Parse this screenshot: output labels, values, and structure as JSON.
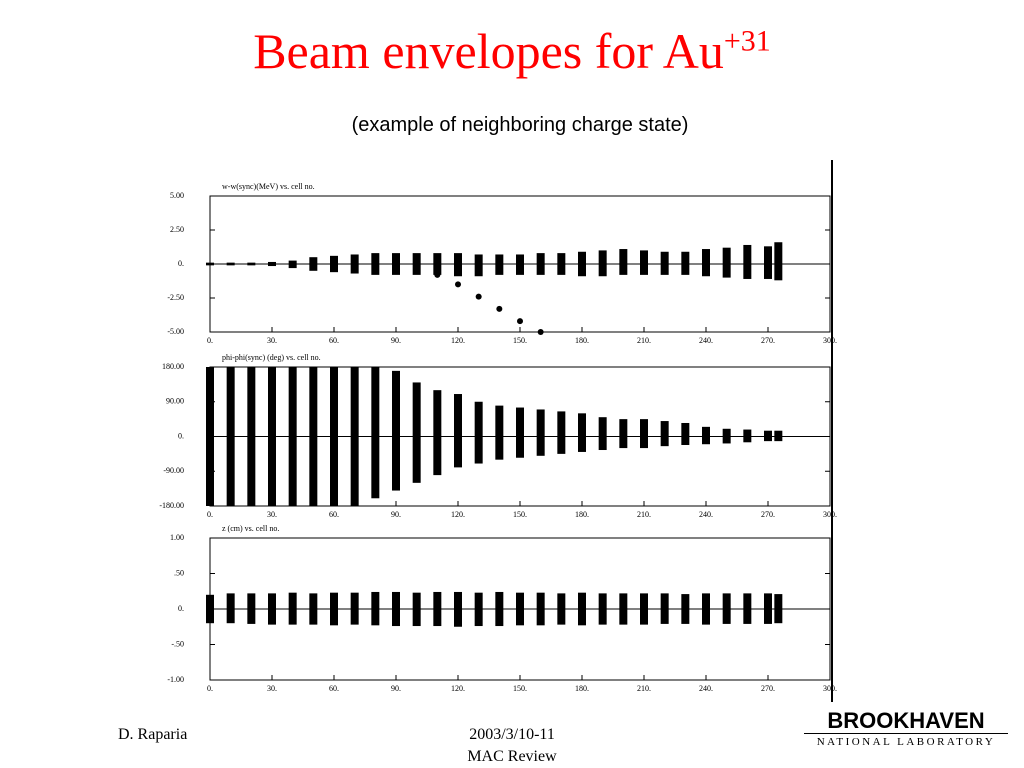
{
  "slide": {
    "title": "Beam envelopes for Au",
    "title_sup": "+31",
    "subtitle": "(example of neighboring charge state)",
    "author": "D. Raparia",
    "date": "2003/3/10-11",
    "event": "MAC Review",
    "logo_top": "BROOKHAVEN",
    "logo_bottom": "NATIONAL LABORATORY"
  },
  "chart_data": [
    {
      "type": "band",
      "title": "w-w(sync)(MeV) vs. cell no.",
      "color": "#000000",
      "x": [
        0,
        10,
        20,
        30,
        40,
        50,
        60,
        70,
        80,
        90,
        100,
        110,
        120,
        130,
        140,
        150,
        160,
        170,
        180,
        190,
        200,
        210,
        220,
        230,
        240,
        250,
        260,
        270,
        275
      ],
      "upper": [
        0.1,
        0.1,
        0.1,
        0.15,
        0.25,
        0.5,
        0.6,
        0.7,
        0.8,
        0.8,
        0.8,
        0.8,
        0.8,
        0.7,
        0.7,
        0.7,
        0.8,
        0.8,
        0.9,
        1.0,
        1.1,
        1.0,
        0.9,
        0.9,
        1.1,
        1.2,
        1.4,
        1.3,
        1.6
      ],
      "lower": [
        -0.1,
        -0.1,
        -0.1,
        -0.15,
        -0.3,
        -0.5,
        -0.6,
        -0.7,
        -0.8,
        -0.8,
        -0.8,
        -0.8,
        -0.9,
        -0.9,
        -0.8,
        -0.8,
        -0.8,
        -0.8,
        -0.9,
        -0.9,
        -0.8,
        -0.8,
        -0.8,
        -0.8,
        -0.9,
        -1.0,
        -1.1,
        -1.1,
        -1.2
      ],
      "branch": {
        "x": [
          100,
          110,
          120,
          130,
          140,
          150,
          160
        ],
        "values": [
          -0.3,
          -0.8,
          -1.5,
          -2.4,
          -3.3,
          -4.2,
          -5.0
        ]
      },
      "xlim": [
        0,
        300
      ],
      "ylim": [
        -5,
        5
      ],
      "xticks": [
        {
          "value": 0,
          "label": "0."
        },
        {
          "value": 30,
          "label": "30."
        },
        {
          "value": 60,
          "label": "60."
        },
        {
          "value": 90,
          "label": "90."
        },
        {
          "value": 120,
          "label": "120."
        },
        {
          "value": 150,
          "label": "150."
        },
        {
          "value": 180,
          "label": "180."
        },
        {
          "value": 210,
          "label": "210."
        },
        {
          "value": 240,
          "label": "240."
        },
        {
          "value": 270,
          "label": "270."
        },
        {
          "value": 300,
          "label": "300."
        }
      ],
      "yticks": [
        {
          "value": 5,
          "label": "5.00"
        },
        {
          "value": 2.5,
          "label": "2.50"
        },
        {
          "value": 0,
          "label": "0."
        },
        {
          "value": -2.5,
          "label": "-2.50"
        },
        {
          "value": -5,
          "label": "-5.00"
        }
      ]
    },
    {
      "type": "band",
      "title": "phi-phi(sync) (deg) vs. cell no.",
      "color": "#000000",
      "x": [
        0,
        10,
        20,
        30,
        40,
        50,
        60,
        70,
        80,
        90,
        100,
        110,
        120,
        130,
        140,
        150,
        160,
        170,
        180,
        190,
        200,
        210,
        220,
        230,
        240,
        250,
        260,
        270,
        275
      ],
      "upper": [
        180,
        180,
        180,
        180,
        180,
        180,
        180,
        180,
        180,
        170,
        140,
        120,
        110,
        90,
        80,
        75,
        70,
        65,
        60,
        50,
        45,
        45,
        40,
        35,
        25,
        20,
        18,
        15,
        15
      ],
      "lower": [
        -180,
        -180,
        -180,
        -180,
        -180,
        -180,
        -180,
        -180,
        -160,
        -140,
        -120,
        -100,
        -80,
        -70,
        -60,
        -55,
        -50,
        -45,
        -40,
        -35,
        -30,
        -30,
        -25,
        -22,
        -20,
        -18,
        -15,
        -12,
        -12
      ],
      "xlim": [
        0,
        300
      ],
      "ylim": [
        -180,
        180
      ],
      "xticks": [
        {
          "value": 0,
          "label": "0."
        },
        {
          "value": 30,
          "label": "30."
        },
        {
          "value": 60,
          "label": "60."
        },
        {
          "value": 90,
          "label": "90."
        },
        {
          "value": 120,
          "label": "120."
        },
        {
          "value": 150,
          "label": "150."
        },
        {
          "value": 180,
          "label": "180."
        },
        {
          "value": 210,
          "label": "210."
        },
        {
          "value": 240,
          "label": "240."
        },
        {
          "value": 270,
          "label": "270."
        },
        {
          "value": 300,
          "label": "300."
        }
      ],
      "yticks": [
        {
          "value": 180,
          "label": "180.00"
        },
        {
          "value": 90,
          "label": "90.00"
        },
        {
          "value": 0,
          "label": "0."
        },
        {
          "value": -90,
          "label": "-90.00"
        },
        {
          "value": -180,
          "label": "-180.00"
        }
      ]
    },
    {
      "type": "band",
      "title": "z (cm) vs. cell no.",
      "color": "#000000",
      "x": [
        0,
        10,
        20,
        30,
        40,
        50,
        60,
        70,
        80,
        90,
        100,
        110,
        120,
        130,
        140,
        150,
        160,
        170,
        180,
        190,
        200,
        210,
        220,
        230,
        240,
        250,
        260,
        270,
        275
      ],
      "upper": [
        0.2,
        0.22,
        0.22,
        0.22,
        0.23,
        0.22,
        0.23,
        0.23,
        0.24,
        0.24,
        0.23,
        0.24,
        0.24,
        0.23,
        0.24,
        0.23,
        0.23,
        0.22,
        0.23,
        0.22,
        0.22,
        0.22,
        0.22,
        0.21,
        0.22,
        0.22,
        0.22,
        0.22,
        0.21
      ],
      "lower": [
        -0.2,
        -0.2,
        -0.21,
        -0.22,
        -0.22,
        -0.22,
        -0.23,
        -0.22,
        -0.23,
        -0.24,
        -0.24,
        -0.24,
        -0.25,
        -0.24,
        -0.24,
        -0.23,
        -0.23,
        -0.22,
        -0.23,
        -0.22,
        -0.22,
        -0.22,
        -0.21,
        -0.21,
        -0.22,
        -0.21,
        -0.21,
        -0.21,
        -0.2
      ],
      "xlim": [
        0,
        300
      ],
      "ylim": [
        -1,
        1
      ],
      "xticks": [
        {
          "value": 0,
          "label": "0."
        },
        {
          "value": 30,
          "label": "30."
        },
        {
          "value": 60,
          "label": "60."
        },
        {
          "value": 90,
          "label": "90."
        },
        {
          "value": 120,
          "label": "120."
        },
        {
          "value": 150,
          "label": "150."
        },
        {
          "value": 180,
          "label": "180."
        },
        {
          "value": 210,
          "label": "210."
        },
        {
          "value": 240,
          "label": "240."
        },
        {
          "value": 270,
          "label": "270."
        },
        {
          "value": 300,
          "label": "300."
        }
      ],
      "yticks": [
        {
          "value": 1,
          "label": "1.00"
        },
        {
          "value": 0.5,
          "label": ".50"
        },
        {
          "value": 0,
          "label": "0."
        },
        {
          "value": -0.5,
          "label": "-.50"
        },
        {
          "value": -1,
          "label": "-1.00"
        }
      ]
    }
  ]
}
